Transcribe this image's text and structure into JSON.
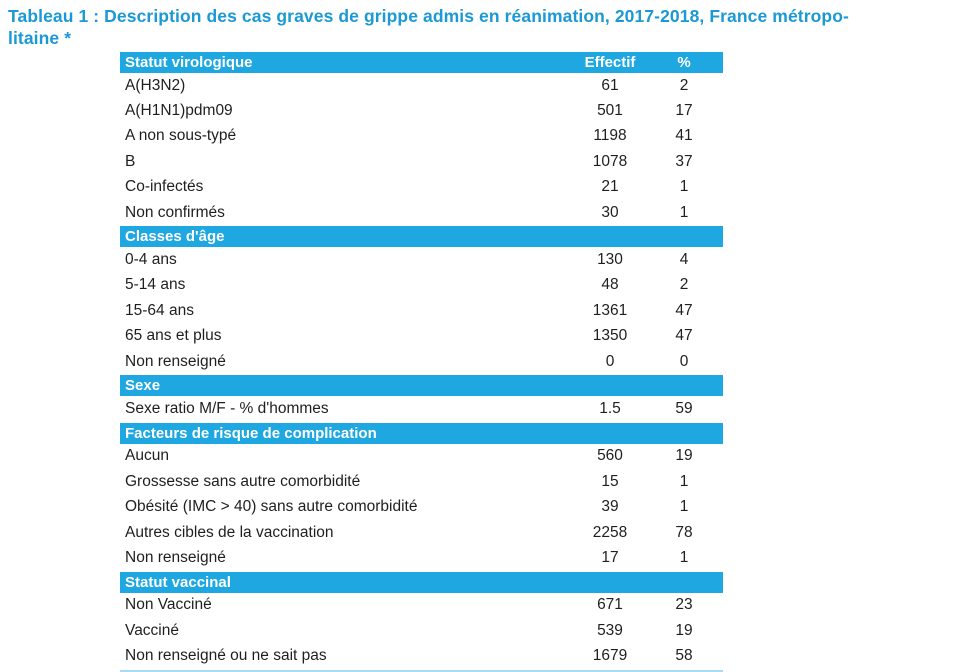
{
  "title": {
    "line1": "Tableau 1 : Description des cas graves de grippe admis en réanimation, 2017-2018, France métropo-",
    "line2": "litaine *"
  },
  "table": {
    "column_headers": {
      "effectif": "Effectif",
      "percent": "%"
    },
    "sections": [
      {
        "header": "Statut virologique",
        "rows": [
          {
            "label": "A(H3N2)",
            "effectif": "61",
            "percent": "2"
          },
          {
            "label": "A(H1N1)pdm09",
            "effectif": "501",
            "percent": "17"
          },
          {
            "label": "A non sous-typé",
            "effectif": "1198",
            "percent": "41"
          },
          {
            "label": "B",
            "effectif": "1078",
            "percent": "37"
          },
          {
            "label": "Co-infectés",
            "effectif": "21",
            "percent": "1"
          },
          {
            "label": "Non confirmés",
            "effectif": "30",
            "percent": "1"
          }
        ]
      },
      {
        "header": "Classes d'âge",
        "rows": [
          {
            "label": "0-4 ans",
            "effectif": "130",
            "percent": "4"
          },
          {
            "label": "5-14 ans",
            "effectif": "48",
            "percent": "2"
          },
          {
            "label": "15-64 ans",
            "effectif": "1361",
            "percent": "47"
          },
          {
            "label": "65 ans et plus",
            "effectif": "1350",
            "percent": "47"
          },
          {
            "label": "Non renseigné",
            "effectif": "0",
            "percent": "0"
          }
        ]
      },
      {
        "header": "Sexe",
        "rows": [
          {
            "label": "Sexe ratio M/F - % d'hommes",
            "effectif": "1.5",
            "percent": "59"
          }
        ]
      },
      {
        "header": "Facteurs de risque de complication",
        "rows": [
          {
            "label": "Aucun",
            "effectif": "560",
            "percent": "19"
          },
          {
            "label": "Grossesse sans autre comorbidité",
            "effectif": "15",
            "percent": "1"
          },
          {
            "label": "Obésité (IMC > 40) sans autre comorbidité",
            "effectif": "39",
            "percent": "1"
          },
          {
            "label": "Autres cibles de la vaccination",
            "effectif": "2258",
            "percent": "78"
          },
          {
            "label": "Non renseigné",
            "effectif": "17",
            "percent": "1"
          }
        ]
      },
      {
        "header": "Statut vaccinal",
        "rows": [
          {
            "label": "Non Vacciné",
            "effectif": "671",
            "percent": "23"
          },
          {
            "label": "Vacciné",
            "effectif": "539",
            "percent": "19"
          },
          {
            "label": "Non renseigné ou ne sait pas",
            "effectif": "1679",
            "percent": "58"
          }
        ]
      }
    ]
  },
  "colors": {
    "header_bar": "#1ea7e0",
    "title_text": "#1b99d5",
    "body_text": "#1f1f1f",
    "bottom_rule": "#a5ddf4"
  }
}
